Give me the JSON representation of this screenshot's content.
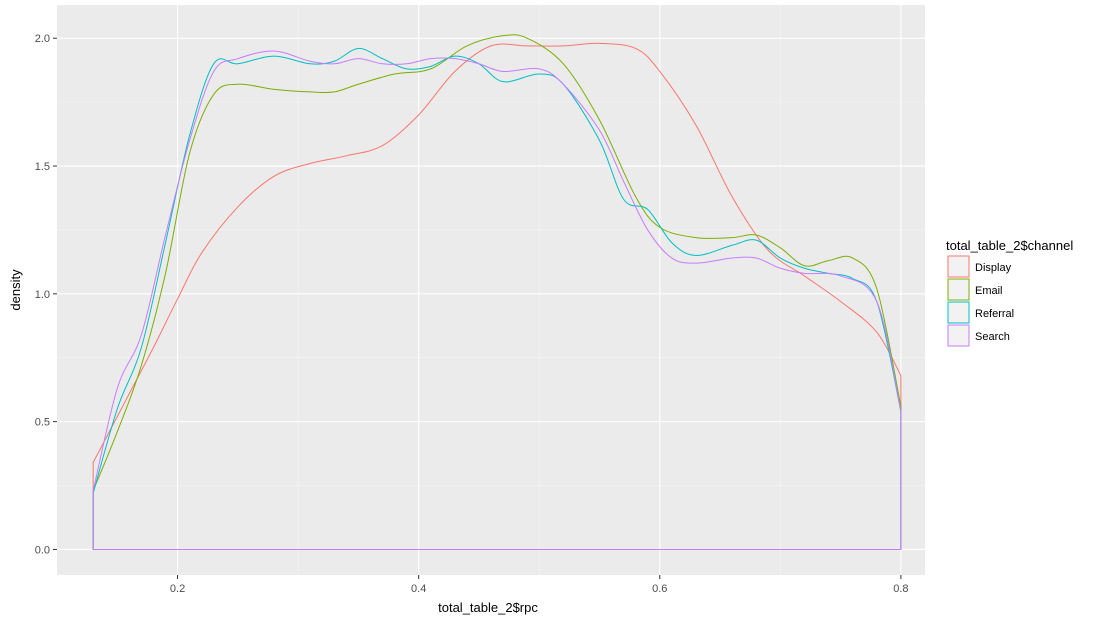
{
  "chart_data": {
    "type": "line",
    "xlabel": "total_table_2$rpc",
    "ylabel": "density",
    "xlim": [
      0.1,
      0.82
    ],
    "ylim": [
      -0.1,
      2.13
    ],
    "x_ticks": [
      0.2,
      0.4,
      0.6,
      0.8
    ],
    "x_tick_labels": [
      "0.2",
      "0.4",
      "0.6",
      "0.8"
    ],
    "y_ticks": [
      0.0,
      0.5,
      1.0,
      1.5,
      2.0
    ],
    "y_tick_labels": [
      "0.0",
      "0.5",
      "1.0",
      "1.5",
      "2.0"
    ],
    "grid": true,
    "legend": {
      "title": "total_table_2$channel",
      "position": "right"
    },
    "series": [
      {
        "name": "Display",
        "color": "#F8766D",
        "points": [
          [
            0.13,
            0.34
          ],
          [
            0.14,
            0.43
          ],
          [
            0.16,
            0.61
          ],
          [
            0.18,
            0.79
          ],
          [
            0.2,
            0.98
          ],
          [
            0.22,
            1.16
          ],
          [
            0.25,
            1.34
          ],
          [
            0.28,
            1.46
          ],
          [
            0.31,
            1.51
          ],
          [
            0.34,
            1.54
          ],
          [
            0.37,
            1.58
          ],
          [
            0.4,
            1.7
          ],
          [
            0.43,
            1.87
          ],
          [
            0.46,
            1.97
          ],
          [
            0.49,
            1.97
          ],
          [
            0.52,
            1.97
          ],
          [
            0.55,
            1.98
          ],
          [
            0.58,
            1.96
          ],
          [
            0.6,
            1.87
          ],
          [
            0.63,
            1.66
          ],
          [
            0.66,
            1.38
          ],
          [
            0.69,
            1.17
          ],
          [
            0.72,
            1.07
          ],
          [
            0.75,
            0.97
          ],
          [
            0.78,
            0.85
          ],
          [
            0.8,
            0.68
          ]
        ]
      },
      {
        "name": "Email",
        "color": "#7CAE00",
        "points": [
          [
            0.13,
            0.23
          ],
          [
            0.15,
            0.46
          ],
          [
            0.17,
            0.72
          ],
          [
            0.19,
            1.08
          ],
          [
            0.21,
            1.55
          ],
          [
            0.23,
            1.78
          ],
          [
            0.25,
            1.82
          ],
          [
            0.28,
            1.8
          ],
          [
            0.31,
            1.79
          ],
          [
            0.33,
            1.79
          ],
          [
            0.35,
            1.82
          ],
          [
            0.38,
            1.86
          ],
          [
            0.41,
            1.88
          ],
          [
            0.44,
            1.97
          ],
          [
            0.47,
            2.01
          ],
          [
            0.49,
            2.0
          ],
          [
            0.52,
            1.9
          ],
          [
            0.55,
            1.68
          ],
          [
            0.58,
            1.38
          ],
          [
            0.6,
            1.26
          ],
          [
            0.63,
            1.22
          ],
          [
            0.66,
            1.22
          ],
          [
            0.68,
            1.23
          ],
          [
            0.7,
            1.18
          ],
          [
            0.72,
            1.11
          ],
          [
            0.74,
            1.13
          ],
          [
            0.76,
            1.14
          ],
          [
            0.78,
            1.02
          ],
          [
            0.8,
            0.56
          ]
        ]
      },
      {
        "name": "Referral",
        "color": "#00BFC4",
        "points": [
          [
            0.13,
            0.22
          ],
          [
            0.15,
            0.55
          ],
          [
            0.17,
            0.79
          ],
          [
            0.19,
            1.2
          ],
          [
            0.21,
            1.62
          ],
          [
            0.23,
            1.9
          ],
          [
            0.25,
            1.9
          ],
          [
            0.28,
            1.93
          ],
          [
            0.31,
            1.9
          ],
          [
            0.33,
            1.91
          ],
          [
            0.35,
            1.96
          ],
          [
            0.37,
            1.92
          ],
          [
            0.39,
            1.88
          ],
          [
            0.41,
            1.89
          ],
          [
            0.43,
            1.93
          ],
          [
            0.45,
            1.9
          ],
          [
            0.47,
            1.83
          ],
          [
            0.5,
            1.86
          ],
          [
            0.52,
            1.82
          ],
          [
            0.55,
            1.6
          ],
          [
            0.57,
            1.37
          ],
          [
            0.59,
            1.33
          ],
          [
            0.61,
            1.2
          ],
          [
            0.63,
            1.15
          ],
          [
            0.66,
            1.19
          ],
          [
            0.68,
            1.21
          ],
          [
            0.7,
            1.14
          ],
          [
            0.72,
            1.1
          ],
          [
            0.74,
            1.08
          ],
          [
            0.76,
            1.06
          ],
          [
            0.78,
            0.97
          ],
          [
            0.8,
            0.54
          ]
        ]
      },
      {
        "name": "Search",
        "color": "#C77CFF",
        "points": [
          [
            0.13,
            0.23
          ],
          [
            0.15,
            0.63
          ],
          [
            0.17,
            0.84
          ],
          [
            0.19,
            1.23
          ],
          [
            0.21,
            1.6
          ],
          [
            0.23,
            1.87
          ],
          [
            0.25,
            1.92
          ],
          [
            0.28,
            1.95
          ],
          [
            0.31,
            1.91
          ],
          [
            0.33,
            1.9
          ],
          [
            0.35,
            1.92
          ],
          [
            0.37,
            1.9
          ],
          [
            0.39,
            1.9
          ],
          [
            0.41,
            1.92
          ],
          [
            0.43,
            1.92
          ],
          [
            0.45,
            1.9
          ],
          [
            0.47,
            1.87
          ],
          [
            0.5,
            1.88
          ],
          [
            0.52,
            1.82
          ],
          [
            0.55,
            1.64
          ],
          [
            0.57,
            1.44
          ],
          [
            0.59,
            1.25
          ],
          [
            0.61,
            1.14
          ],
          [
            0.63,
            1.12
          ],
          [
            0.66,
            1.14
          ],
          [
            0.68,
            1.14
          ],
          [
            0.7,
            1.1
          ],
          [
            0.72,
            1.08
          ],
          [
            0.75,
            1.07
          ],
          [
            0.78,
            0.97
          ],
          [
            0.8,
            0.54
          ]
        ]
      }
    ]
  }
}
